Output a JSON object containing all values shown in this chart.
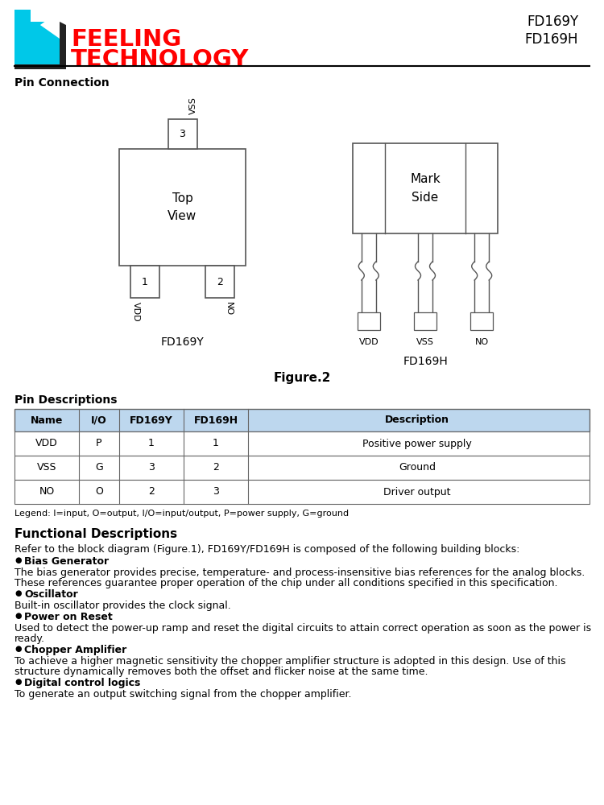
{
  "bg_color": "#ffffff",
  "logo_text1": "FEELING",
  "logo_text2": "TECHNOLOGY",
  "logo_color": "#ff0000",
  "logo_cyan": "#00c8e8",
  "model_text1": "FD169Y",
  "model_text2": "FD169H",
  "section1_title": "Pin Connection",
  "figure_label": "Figure.2",
  "fd169y_label": "FD169Y",
  "fd169h_label": "FD169H",
  "section2_title": "Pin Descriptions",
  "table_header": [
    "Name",
    "I/O",
    "FD169Y",
    "FD169H",
    "Description"
  ],
  "table_col_widths": [
    80,
    50,
    80,
    80,
    420
  ],
  "table_rows": [
    [
      "VDD",
      "P",
      "1",
      "1",
      "Positive power supply"
    ],
    [
      "VSS",
      "G",
      "3",
      "2",
      "Ground"
    ],
    [
      "NO",
      "O",
      "2",
      "3",
      "Driver output"
    ]
  ],
  "table_header_bg": "#bdd7ee",
  "table_border": "#666666",
  "legend_text": "Legend: I=input, O=output, I/O=input/output, P=power supply, G=ground",
  "section3_title": "Functional Descriptions",
  "func_desc_intro": "Refer to the block diagram (Figure.1), FD169Y/FD169H is composed of the following building blocks:",
  "func_desc_items": [
    {
      "bullet": "Bias Generator",
      "body": "The bias generator provides precise, temperature- and process-insensitive bias references for the analog blocks.\nThese references guarantee proper operation of the chip under all conditions specified in this specification."
    },
    {
      "bullet": "Oscillator",
      "body": "Built-in oscillator provides the clock signal."
    },
    {
      "bullet": "Power on Reset",
      "body": "Used to detect the power-up ramp and reset the digital circuits to attain correct operation as soon as the power is\nready."
    },
    {
      "bullet": "Chopper Amplifier",
      "body": "To achieve a higher magnetic sensitivity the chopper amplifier structure is adopted in this design. Use of this\nstructure dynamically removes both the offset and flicker noise at the same time."
    },
    {
      "bullet": "Digital control logics",
      "body": "To generate an output switching signal from the chopper amplifier."
    }
  ]
}
